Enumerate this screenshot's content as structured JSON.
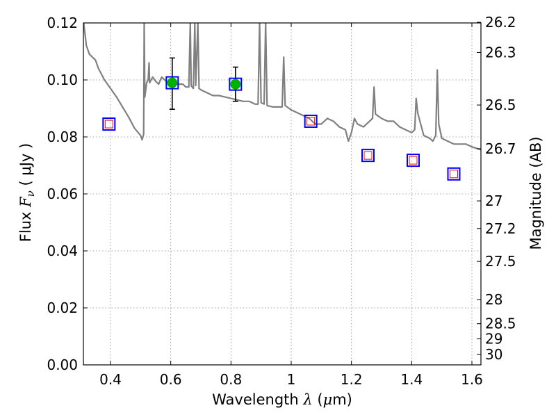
{
  "chart_data": {
    "type": "scatter",
    "title": "",
    "xlabel": {
      "prefix": "Wavelength  ",
      "symbol": "λ",
      "units_open": " (",
      "units_mu": "μ",
      "units_rest": "m)"
    },
    "ylabel": {
      "prefix": "Flux  ",
      "symbol": "F",
      "subscript": "ν",
      "units": "  ( μJy )"
    },
    "y2label": "Magnitude (AB)",
    "xlim": [
      0.31,
      1.63
    ],
    "ylim": [
      0.0,
      0.12
    ],
    "grid": true,
    "x_ticks": [
      0.4,
      0.6,
      0.8,
      1.0,
      1.2,
      1.4,
      1.6
    ],
    "x_tick_labels": [
      "0.4",
      "0.6",
      "0.8",
      "1",
      "1.2",
      "1.4",
      "1.6"
    ],
    "y_ticks": [
      0.0,
      0.02,
      0.04,
      0.06,
      0.08,
      0.1,
      0.12
    ],
    "y_tick_labels": [
      "0.00",
      "0.02",
      "0.04",
      "0.06",
      "0.08",
      "0.10",
      "0.12"
    ],
    "mag_ticks": [
      26.2,
      26.3,
      26.5,
      26.7,
      27,
      27.2,
      27.5,
      28,
      28.5,
      29,
      30
    ],
    "mag_tick_labels": [
      "26.2",
      "26.3",
      "26.5",
      "26.7",
      "27",
      "27.2",
      "27.5",
      "28",
      "28.5",
      "29",
      "30"
    ],
    "colors": {
      "sed": "#808080",
      "model_edge": "#0000ff",
      "model_inner": "#ff0000",
      "observed": "#00b000",
      "error": "#000000",
      "grid": "#888888"
    },
    "series": [
      {
        "name": "SED model spectrum",
        "kind": "line",
        "points": [
          [
            0.31,
            0.121
          ],
          [
            0.32,
            0.112
          ],
          [
            0.33,
            0.109
          ],
          [
            0.34,
            0.108
          ],
          [
            0.35,
            0.107
          ],
          [
            0.36,
            0.104
          ],
          [
            0.37,
            0.102
          ],
          [
            0.38,
            0.1
          ],
          [
            0.39,
            0.0985
          ],
          [
            0.4,
            0.097
          ],
          [
            0.42,
            0.094
          ],
          [
            0.44,
            0.0905
          ],
          [
            0.46,
            0.087
          ],
          [
            0.48,
            0.083
          ],
          [
            0.5,
            0.0805
          ],
          [
            0.505,
            0.079
          ],
          [
            0.51,
            0.081
          ],
          [
            0.512,
            0.12
          ],
          [
            0.514,
            0.094
          ],
          [
            0.52,
            0.099
          ],
          [
            0.525,
            0.1
          ],
          [
            0.528,
            0.106
          ],
          [
            0.53,
            0.099
          ],
          [
            0.54,
            0.101
          ],
          [
            0.55,
            0.0995
          ],
          [
            0.56,
            0.0985
          ],
          [
            0.57,
            0.101
          ],
          [
            0.58,
            0.1
          ],
          [
            0.59,
            0.099
          ],
          [
            0.6,
            0.0995
          ],
          [
            0.62,
            0.0985
          ],
          [
            0.64,
            0.0985
          ],
          [
            0.65,
            0.0975
          ],
          [
            0.66,
            0.0975
          ],
          [
            0.665,
            0.12
          ],
          [
            0.668,
            0.098
          ],
          [
            0.675,
            0.097
          ],
          [
            0.68,
            0.12
          ],
          [
            0.683,
            0.098
          ],
          [
            0.69,
            0.12
          ],
          [
            0.694,
            0.097
          ],
          [
            0.7,
            0.0965
          ],
          [
            0.72,
            0.0955
          ],
          [
            0.74,
            0.0945
          ],
          [
            0.76,
            0.0945
          ],
          [
            0.78,
            0.094
          ],
          [
            0.8,
            0.0935
          ],
          [
            0.82,
            0.093
          ],
          [
            0.84,
            0.0925
          ],
          [
            0.86,
            0.0925
          ],
          [
            0.88,
            0.0915
          ],
          [
            0.89,
            0.0915
          ],
          [
            0.895,
            0.12
          ],
          [
            0.9,
            0.092
          ],
          [
            0.91,
            0.0915
          ],
          [
            0.915,
            0.12
          ],
          [
            0.92,
            0.091
          ],
          [
            0.94,
            0.0905
          ],
          [
            0.96,
            0.0905
          ],
          [
            0.97,
            0.0905
          ],
          [
            0.975,
            0.108
          ],
          [
            0.98,
            0.091
          ],
          [
            1.0,
            0.0895
          ],
          [
            1.02,
            0.0885
          ],
          [
            1.04,
            0.0875
          ],
          [
            1.06,
            0.0865
          ],
          [
            1.08,
            0.0845
          ],
          [
            1.1,
            0.0845
          ],
          [
            1.12,
            0.0865
          ],
          [
            1.14,
            0.0855
          ],
          [
            1.16,
            0.0835
          ],
          [
            1.18,
            0.0825
          ],
          [
            1.19,
            0.0785
          ],
          [
            1.2,
            0.0815
          ],
          [
            1.21,
            0.0865
          ],
          [
            1.22,
            0.0845
          ],
          [
            1.24,
            0.0835
          ],
          [
            1.26,
            0.0855
          ],
          [
            1.27,
            0.0865
          ],
          [
            1.275,
            0.0975
          ],
          [
            1.28,
            0.088
          ],
          [
            1.3,
            0.0865
          ],
          [
            1.32,
            0.0855
          ],
          [
            1.34,
            0.0855
          ],
          [
            1.36,
            0.0835
          ],
          [
            1.38,
            0.0825
          ],
          [
            1.4,
            0.0815
          ],
          [
            1.41,
            0.0825
          ],
          [
            1.415,
            0.0935
          ],
          [
            1.42,
            0.0885
          ],
          [
            1.43,
            0.0845
          ],
          [
            1.44,
            0.0805
          ],
          [
            1.46,
            0.0795
          ],
          [
            1.47,
            0.0785
          ],
          [
            1.48,
            0.0805
          ],
          [
            1.485,
            0.1035
          ],
          [
            1.49,
            0.0845
          ],
          [
            1.5,
            0.0795
          ],
          [
            1.52,
            0.0785
          ],
          [
            1.54,
            0.0775
          ],
          [
            1.56,
            0.0775
          ],
          [
            1.58,
            0.0775
          ],
          [
            1.6,
            0.0765
          ],
          [
            1.63,
            0.0755
          ]
        ]
      },
      {
        "name": "Model photometry",
        "kind": "square",
        "points": [
          [
            0.395,
            0.0845
          ],
          [
            1.065,
            0.0855
          ],
          [
            1.255,
            0.0735
          ],
          [
            1.405,
            0.0718
          ],
          [
            1.54,
            0.067
          ]
        ]
      },
      {
        "name": "Observed photometry",
        "kind": "circle",
        "points": [
          {
            "x": 0.605,
            "y": 0.099,
            "yerr_low": 0.0897,
            "yerr_high": 0.1077
          },
          {
            "x": 0.815,
            "y": 0.0985,
            "yerr_low": 0.0925,
            "yerr_high": 0.1045
          }
        ]
      }
    ]
  }
}
